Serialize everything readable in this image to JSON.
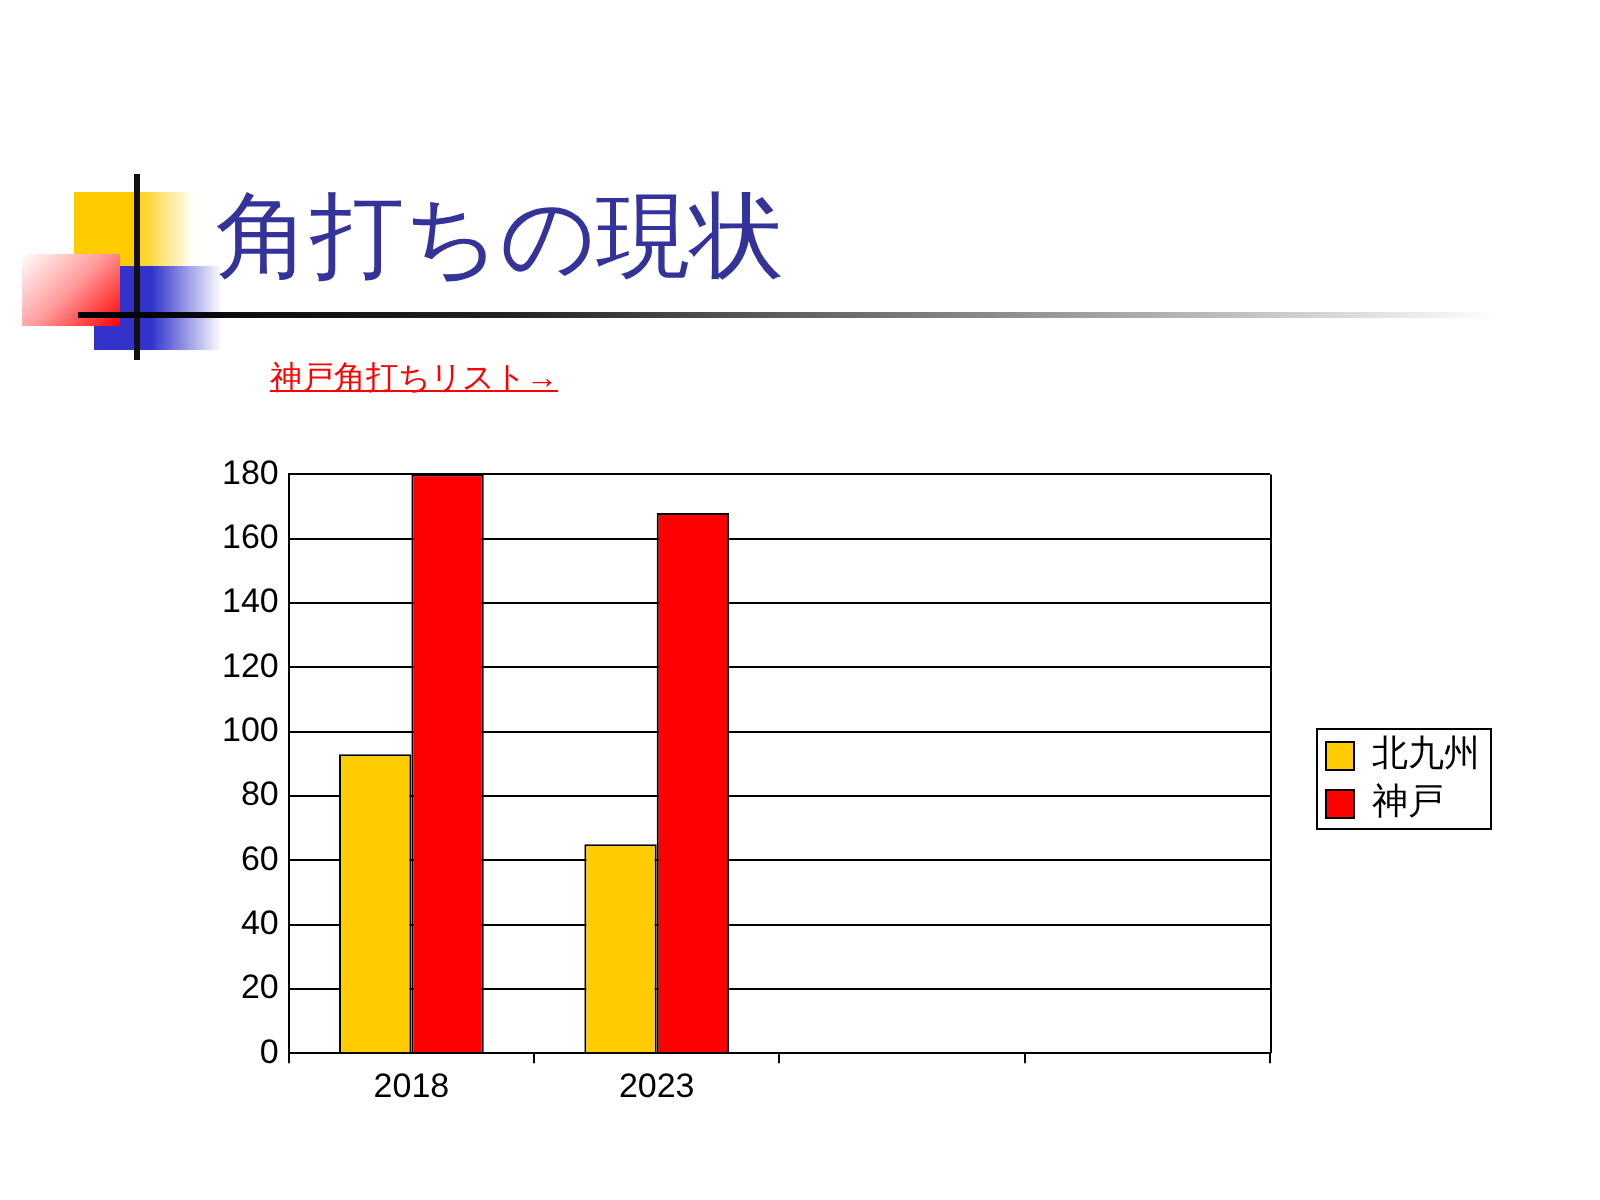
{
  "chart_data": {
    "type": "bar",
    "title": "角打ちの現状",
    "annotations": [
      "神戸角打ちリスト→"
    ],
    "categories": [
      "2018",
      "2023",
      null,
      null
    ],
    "series": [
      {
        "name": "北九州",
        "color": "#ffcc00",
        "values": [
          93,
          65,
          null,
          null
        ]
      },
      {
        "name": "神戸",
        "color": "#ff0000",
        "values": [
          180,
          168,
          null,
          null
        ]
      }
    ],
    "ylim": [
      0,
      180
    ],
    "yticks": [
      0,
      20,
      40,
      60,
      80,
      100,
      120,
      140,
      160,
      180
    ],
    "grid": "y",
    "legend": "right"
  }
}
